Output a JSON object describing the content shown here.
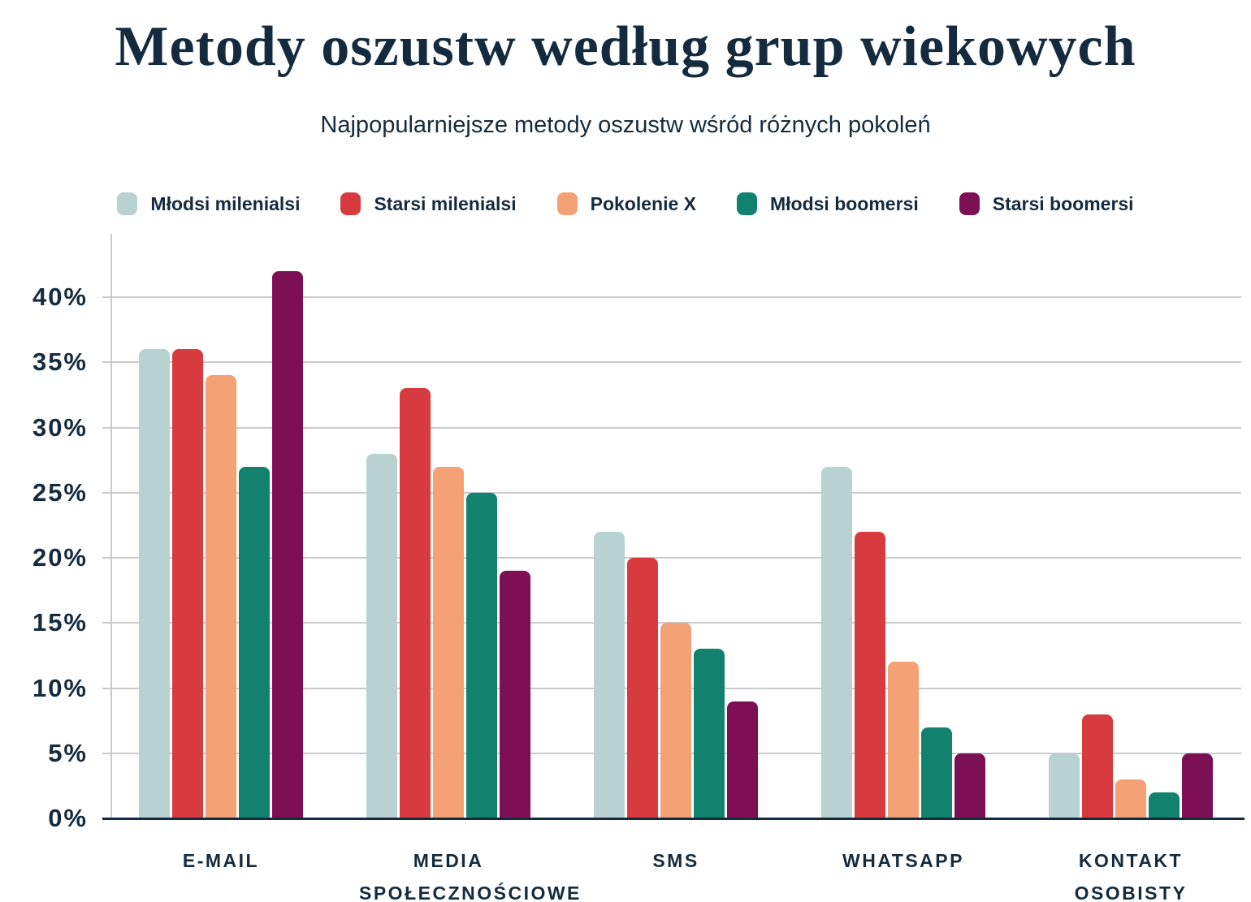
{
  "title": "Metody oszustw według grup wiekowych",
  "subtitle": "Najpopularniejsze metody oszustw wśród różnych pokoleń",
  "colors": {
    "text_navy": "#142b3f",
    "gridline": "#c8cacc",
    "axis_baseline": "#142b3f",
    "series_mlodsi_milenialsi": "#b8d1d1",
    "series_starsi_milenialsi": "#d83b3f",
    "series_pokolenie_x": "#f3a175",
    "series_mlodsi_boomersi": "#12826e",
    "series_starsi_boomersi": "#7d0f55"
  },
  "chart_data": {
    "type": "bar",
    "categories": [
      "E-MAIL",
      "MEDIA SPOŁECZNOŚCIOWE",
      "SMS",
      "WHATSAPP",
      "KONTAKT OSOBISTY"
    ],
    "series": [
      {
        "name": "Młodsi milenialsi",
        "color": "#b8d1d1",
        "values": [
          36,
          28,
          22,
          27,
          5
        ]
      },
      {
        "name": "Starsi milenialsi",
        "color": "#d83b3f",
        "values": [
          36,
          33,
          20,
          22,
          8
        ]
      },
      {
        "name": "Pokolenie X",
        "color": "#f3a175",
        "values": [
          34,
          27,
          15,
          12,
          3
        ]
      },
      {
        "name": "Młodsi boomersi",
        "color": "#12826e",
        "values": [
          27,
          25,
          13,
          7,
          2
        ]
      },
      {
        "name": "Starsi boomersi",
        "color": "#7d0f55",
        "values": [
          42,
          19,
          9,
          5,
          5
        ]
      }
    ],
    "title": "Metody oszustw według grup wiekowych",
    "subtitle": "Najpopularniejsze metody oszustw wśród różnych pokoleń",
    "xlabel": "",
    "ylabel": "",
    "ylim": [
      0,
      45
    ],
    "ytick_step": 5,
    "ytick_labels": [
      "0%",
      "5%",
      "10%",
      "15%",
      "20%",
      "25%",
      "30%",
      "35%",
      "40%"
    ],
    "grid": true,
    "legend_position": "top"
  }
}
